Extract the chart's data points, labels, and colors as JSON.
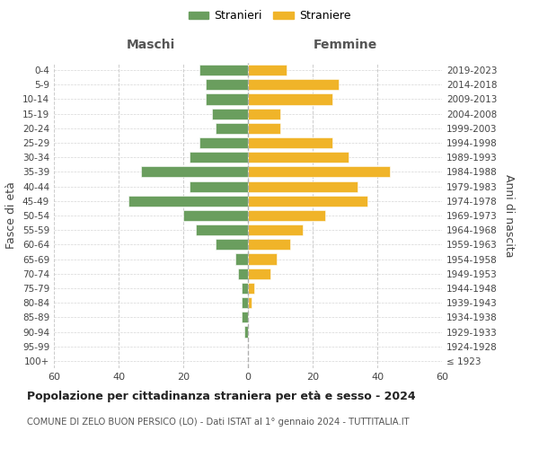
{
  "age_groups": [
    "100+",
    "95-99",
    "90-94",
    "85-89",
    "80-84",
    "75-79",
    "70-74",
    "65-69",
    "60-64",
    "55-59",
    "50-54",
    "45-49",
    "40-44",
    "35-39",
    "30-34",
    "25-29",
    "20-24",
    "15-19",
    "10-14",
    "5-9",
    "0-4"
  ],
  "birth_years": [
    "≤ 1923",
    "1924-1928",
    "1929-1933",
    "1934-1938",
    "1939-1943",
    "1944-1948",
    "1949-1953",
    "1954-1958",
    "1959-1963",
    "1964-1968",
    "1969-1973",
    "1974-1978",
    "1979-1983",
    "1984-1988",
    "1989-1993",
    "1994-1998",
    "1999-2003",
    "2004-2008",
    "2009-2013",
    "2014-2018",
    "2019-2023"
  ],
  "males": [
    0,
    0,
    1,
    2,
    2,
    2,
    3,
    4,
    10,
    16,
    20,
    37,
    18,
    33,
    18,
    15,
    10,
    11,
    13,
    13,
    15
  ],
  "females": [
    0,
    0,
    0,
    0,
    1,
    2,
    7,
    9,
    13,
    17,
    24,
    37,
    34,
    44,
    31,
    26,
    10,
    10,
    26,
    28,
    12
  ],
  "male_color": "#6a9e5e",
  "female_color": "#f0b429",
  "background_color": "#ffffff",
  "grid_color": "#cccccc",
  "title": "Popolazione per cittadinanza straniera per età e sesso - 2024",
  "subtitle": "COMUNE DI ZELO BUON PERSICO (LO) - Dati ISTAT al 1° gennaio 2024 - TUTTITALIA.IT",
  "xlabel_left": "Maschi",
  "xlabel_right": "Femmine",
  "ylabel_left": "Fasce di età",
  "ylabel_right": "Anni di nascita",
  "legend_male": "Stranieri",
  "legend_female": "Straniere",
  "xlim": 60
}
